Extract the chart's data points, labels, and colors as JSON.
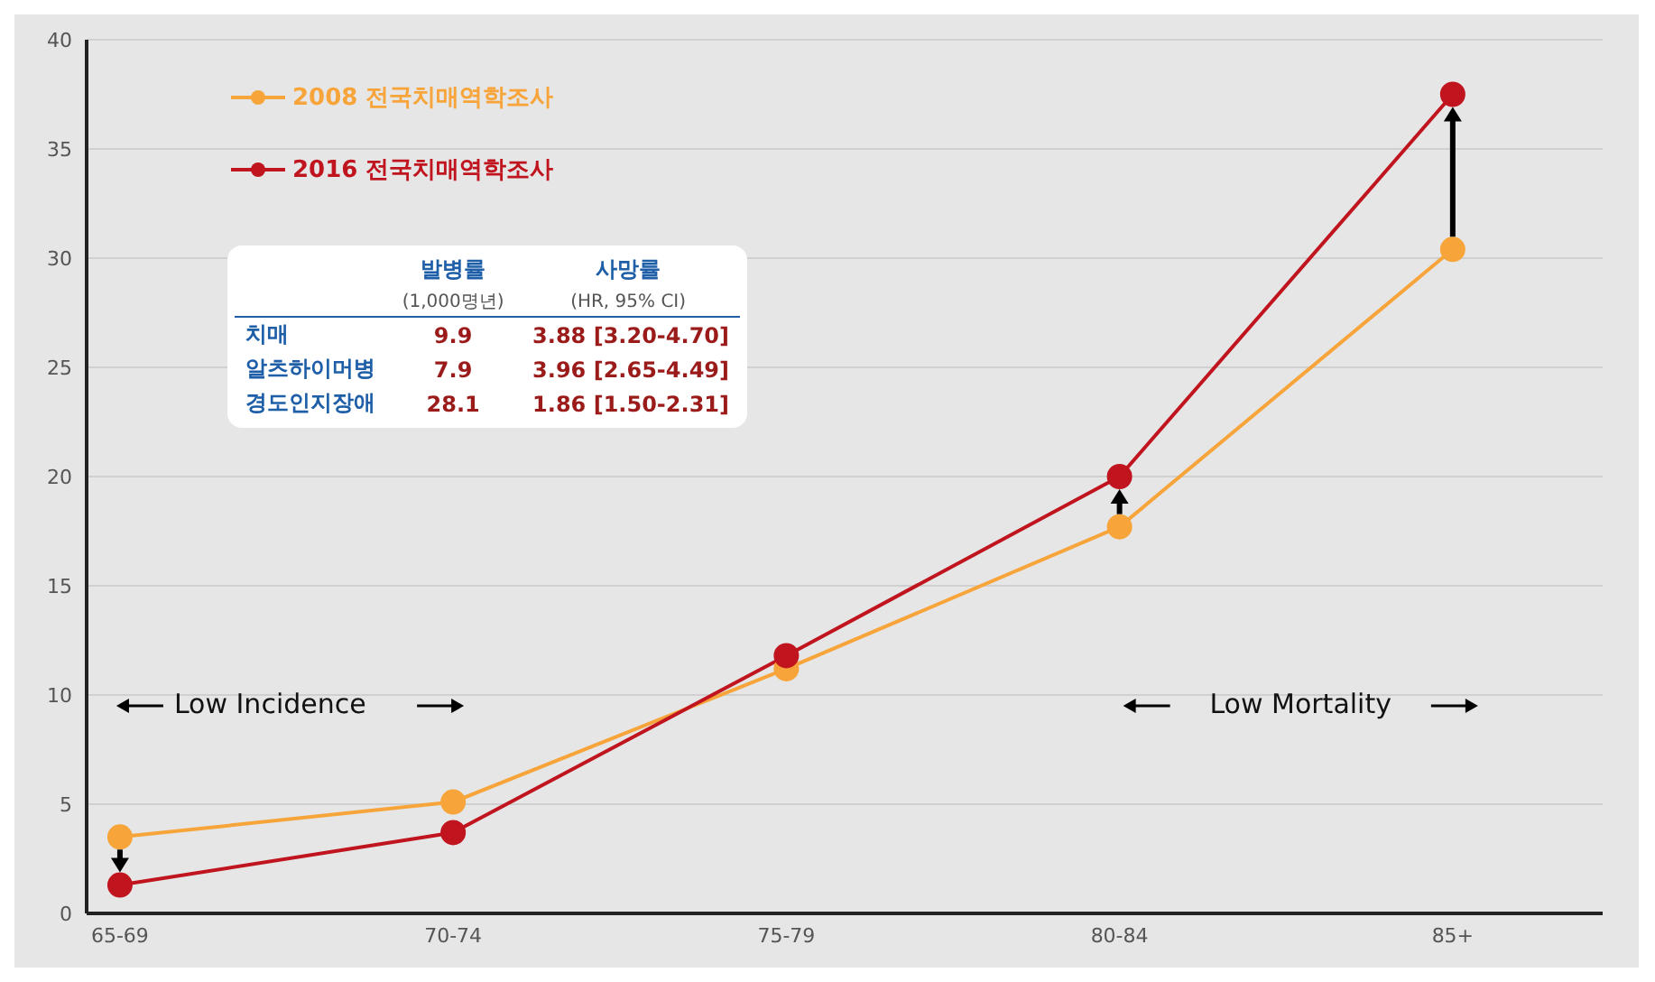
{
  "chart_data": {
    "type": "line",
    "categories": [
      "65-69",
      "70-74",
      "75-79",
      "80-84",
      "85+"
    ],
    "series": [
      {
        "name": "2008 전국치매역학조사",
        "color": "#f7a53a",
        "values": [
          3.5,
          5.1,
          11.2,
          17.7,
          30.4
        ]
      },
      {
        "name": "2016 전국치매역학조사",
        "color": "#c0141e",
        "values": [
          1.3,
          3.7,
          11.8,
          20.0,
          37.5
        ]
      }
    ],
    "ylim": [
      0,
      40
    ],
    "yticks": [
      0,
      5,
      10,
      15,
      20,
      25,
      30,
      35,
      40
    ],
    "grid": "y",
    "legend": "top left",
    "marker": "circle",
    "line_style": "solid",
    "annotations": [
      "발병률",
      "사망률",
      "(1,000명년)",
      "(HR, 95% CI)",
      "치매",
      "9.9",
      "3.88 [3.20-4.70]",
      "알츠하이머병",
      "7.9",
      "3.96 [2.65-4.49]",
      "경도인지장애",
      "28.1",
      "1.86 [1.50-2.31]",
      "Low Incidence",
      "Low Mortality"
    ]
  }
}
